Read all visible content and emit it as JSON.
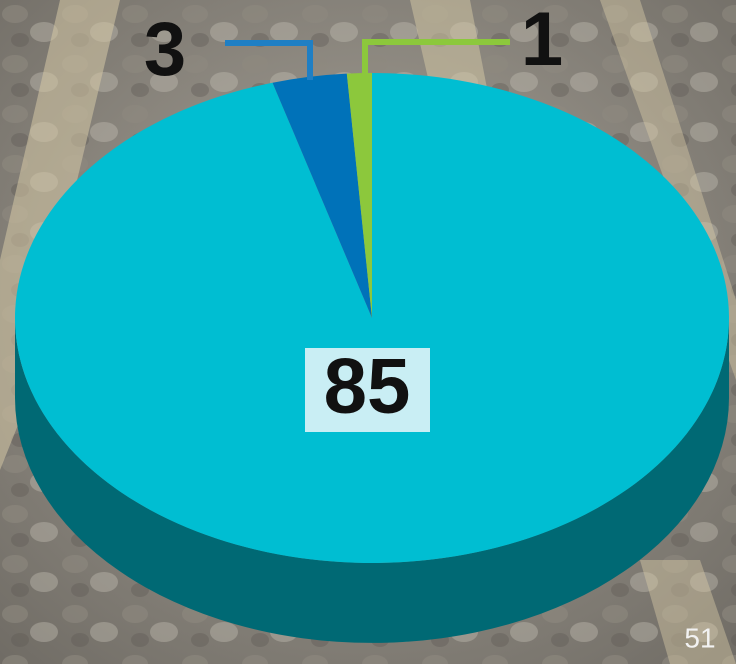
{
  "chart_data": {
    "type": "pie",
    "values": [
      85,
      3,
      1
    ],
    "colors": [
      "#00bed2",
      "#0072b9",
      "#8cc83c"
    ],
    "start_angle": -90,
    "direction": "clockwise",
    "three_d": true
  },
  "page_number": "51"
}
